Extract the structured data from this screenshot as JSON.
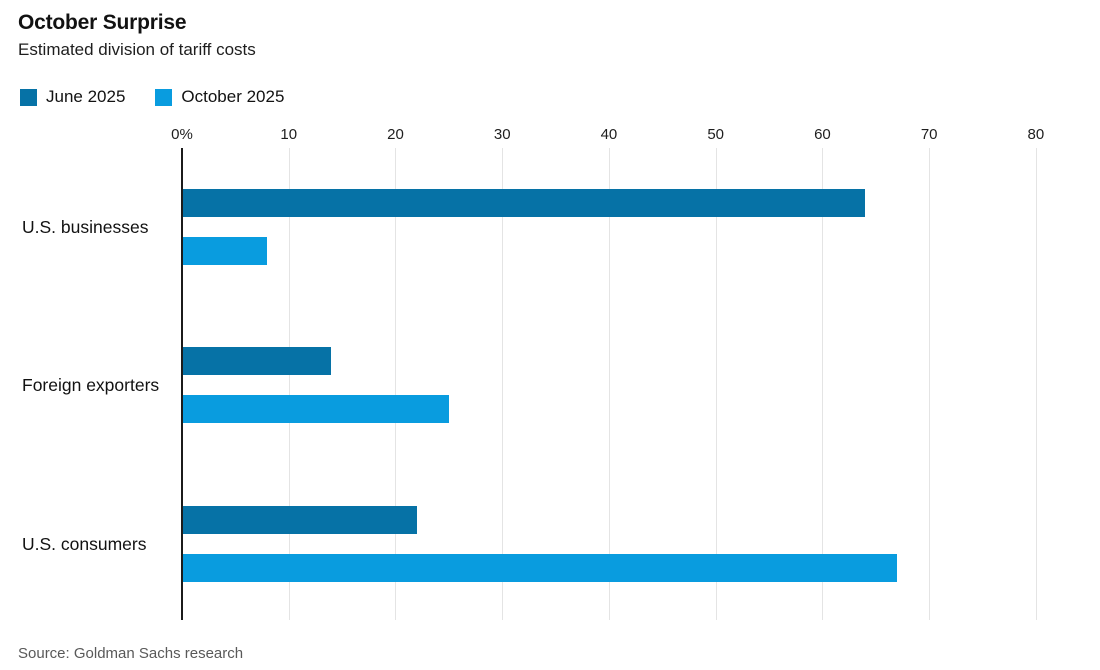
{
  "header": {
    "title": "October Surprise",
    "subtitle": "Estimated division of tariff costs"
  },
  "legend": {
    "items": [
      {
        "label": "June 2025",
        "color": "#0672A6"
      },
      {
        "label": "October 2025",
        "color": "#099CDF"
      }
    ]
  },
  "source": "Source: Goldman Sachs research",
  "chart_data": {
    "type": "bar",
    "orientation": "horizontal",
    "title": "October Surprise",
    "subtitle": "Estimated division of tariff costs",
    "unit": "%",
    "categories": [
      "U.S. businesses",
      "Foreign exporters",
      "U.S. consumers"
    ],
    "series": [
      {
        "name": "June 2025",
        "color": "#0672A6",
        "values": [
          64,
          14,
          22
        ]
      },
      {
        "name": "October 2025",
        "color": "#099CDF",
        "values": [
          8,
          25,
          67
        ]
      }
    ],
    "x_ticks": [
      {
        "value": 0,
        "label": "0%"
      },
      {
        "value": 10,
        "label": "10"
      },
      {
        "value": 20,
        "label": "20"
      },
      {
        "value": 30,
        "label": "30"
      },
      {
        "value": 40,
        "label": "40"
      },
      {
        "value": 50,
        "label": "50"
      },
      {
        "value": 60,
        "label": "60"
      },
      {
        "value": 70,
        "label": "70"
      },
      {
        "value": 80,
        "label": "80"
      }
    ],
    "xlim": [
      0,
      84.6
    ],
    "grid": true,
    "legend_position": "top-left",
    "source": "Source: Goldman Sachs research"
  }
}
